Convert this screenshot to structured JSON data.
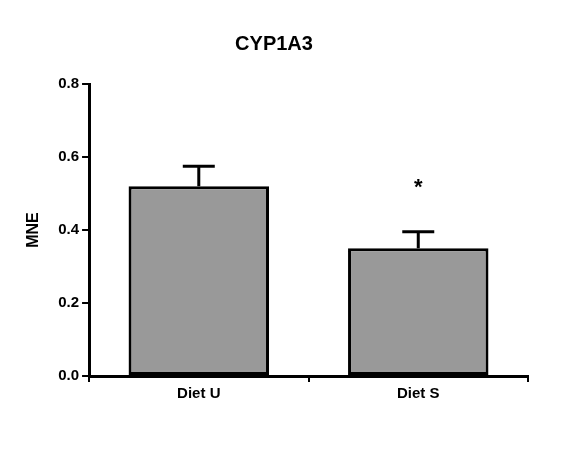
{
  "chart_data": {
    "type": "bar",
    "title": "CYP1A3",
    "y_label": "MNE",
    "categories": [
      "Diet U",
      "Diet S"
    ],
    "values": [
      0.52,
      0.35
    ],
    "errors": [
      0.055,
      0.045
    ],
    "color": "#999999",
    "ylim": [
      0,
      0.8
    ],
    "yticks": [
      {
        "value": 0,
        "label": "0.0"
      },
      0.2,
      0.4,
      0.6,
      0.8
    ],
    "grid": false,
    "annotations": [
      {
        "text": "*",
        "category": "Diet S"
      }
    ]
  }
}
